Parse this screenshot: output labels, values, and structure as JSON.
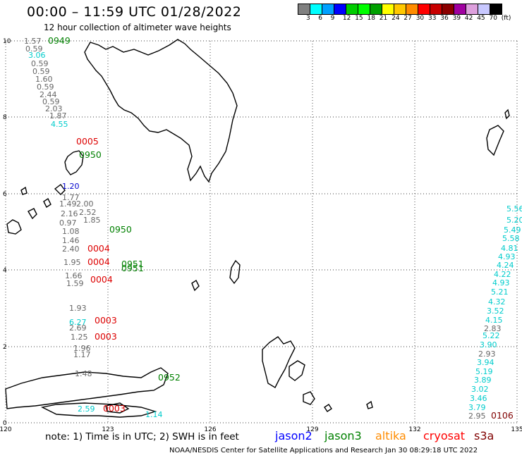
{
  "header": {
    "title": "00:00 – 11:59 UTC 01/28/2022",
    "subtitle": "12 hour collection of altimeter wave heights"
  },
  "legend": {
    "colors": [
      "#808080",
      "#00ffff",
      "#00a0ff",
      "#0000ff",
      "#00cd00",
      "#00ff00",
      "#00a000",
      "#ffff00",
      "#ffc800",
      "#ff8c00",
      "#ff0000",
      "#c80000",
      "#8b0000",
      "#a000a0",
      "#dda0dd",
      "#c8c8ff",
      "#000000"
    ],
    "labels": [
      "3",
      "6",
      "9",
      "12",
      "15",
      "18",
      "21",
      "24",
      "27",
      "30",
      "33",
      "36",
      "39",
      "42",
      "45",
      "70",
      "(ft)"
    ]
  },
  "map": {
    "lat_labels": [
      "10",
      "8",
      "6",
      "4",
      "2",
      "0"
    ],
    "lon_labels": [
      "120",
      "123",
      "126",
      "129",
      "132",
      "135"
    ],
    "text_color": "#666666",
    "ground_tracks": [
      {
        "mission": "jason3",
        "time": "0949",
        "color": "#008000"
      },
      {
        "mission": "cryosat",
        "time": "0005",
        "color": "#dd0000"
      },
      {
        "mission": "jason3",
        "time": "0950",
        "color": "#008000"
      },
      {
        "mission": "cryosat",
        "time": "0004",
        "color": "#dd0000"
      },
      {
        "mission": "jason3",
        "time": "0951",
        "color": "#008000"
      },
      {
        "mission": "cryosat",
        "time": "0003",
        "color": "#dd0000"
      },
      {
        "mission": "jason3",
        "time": "0952",
        "color": "#008000"
      },
      {
        "mission": "s3a",
        "time": "0106",
        "color": "#800000"
      }
    ],
    "wave_heights_ft": [
      {
        "v": "1.57",
        "c": "#666666"
      },
      {
        "v": "0.59",
        "c": "#666666"
      },
      {
        "v": "3.06",
        "c": "#00cccc"
      },
      {
        "v": "0.59",
        "c": "#666666"
      },
      {
        "v": "0.59",
        "c": "#666666"
      },
      {
        "v": "1.60",
        "c": "#666666"
      },
      {
        "v": "0.59",
        "c": "#666666"
      },
      {
        "v": "2.44",
        "c": "#666666"
      },
      {
        "v": "0.59",
        "c": "#666666"
      },
      {
        "v": "2.03",
        "c": "#666666"
      },
      {
        "v": "1.87",
        "c": "#666666"
      },
      {
        "v": "4.55",
        "c": "#00cccc"
      },
      {
        "v": "1.20",
        "c": "#0000cc"
      },
      {
        "v": "1.77",
        "c": "#666666"
      },
      {
        "v": "1.49",
        "c": "#666666"
      },
      {
        "v": "2.00",
        "c": "#666666"
      },
      {
        "v": "2.16",
        "c": "#666666"
      },
      {
        "v": "2.52",
        "c": "#666666"
      },
      {
        "v": "0.97",
        "c": "#666666"
      },
      {
        "v": "1.85",
        "c": "#666666"
      },
      {
        "v": "1.08",
        "c": "#666666"
      },
      {
        "v": "1.46",
        "c": "#666666"
      },
      {
        "v": "2.40",
        "c": "#666666"
      },
      {
        "v": "1.95",
        "c": "#666666"
      },
      {
        "v": "1.66",
        "c": "#666666"
      },
      {
        "v": "1.59",
        "c": "#666666"
      },
      {
        "v": "1.93",
        "c": "#666666"
      },
      {
        "v": "6.27",
        "c": "#00cccc"
      },
      {
        "v": "2.69",
        "c": "#666666"
      },
      {
        "v": "1.25",
        "c": "#666666"
      },
      {
        "v": "1.96",
        "c": "#666666"
      },
      {
        "v": "1.17",
        "c": "#666666"
      },
      {
        "v": "1.48",
        "c": "#666666"
      },
      {
        "v": "2.59",
        "c": "#00cccc"
      },
      {
        "v": "1.14",
        "c": "#00cccc"
      },
      {
        "v": "5.56",
        "c": "#00cccc"
      },
      {
        "v": "5.20",
        "c": "#00cccc"
      },
      {
        "v": "5.49",
        "c": "#00cccc"
      },
      {
        "v": "5.58",
        "c": "#00cccc"
      },
      {
        "v": "4.81",
        "c": "#00cccc"
      },
      {
        "v": "4.93",
        "c": "#00cccc"
      },
      {
        "v": "4.24",
        "c": "#00cccc"
      },
      {
        "v": "4.22",
        "c": "#00cccc"
      },
      {
        "v": "4.93",
        "c": "#00cccc"
      },
      {
        "v": "5.21",
        "c": "#00cccc"
      },
      {
        "v": "4.32",
        "c": "#00cccc"
      },
      {
        "v": "3.52",
        "c": "#00cccc"
      },
      {
        "v": "4.15",
        "c": "#00cccc"
      },
      {
        "v": "2.83",
        "c": "#666666"
      },
      {
        "v": "5.22",
        "c": "#00cccc"
      },
      {
        "v": "3.90",
        "c": "#00cccc"
      },
      {
        "v": "2.93",
        "c": "#666666"
      },
      {
        "v": "3.94",
        "c": "#00cccc"
      },
      {
        "v": "5.19",
        "c": "#00cccc"
      },
      {
        "v": "3.89",
        "c": "#00cccc"
      },
      {
        "v": "3.02",
        "c": "#00cccc"
      },
      {
        "v": "3.46",
        "c": "#00cccc"
      },
      {
        "v": "3.79",
        "c": "#00cccc"
      },
      {
        "v": "2.95",
        "c": "#666666"
      }
    ]
  },
  "footer": {
    "note": "note: 1) Time is in UTC; 2) SWH is in feet",
    "missions": [
      {
        "name": "jason2",
        "color": "#0000ff"
      },
      {
        "name": "jason3",
        "color": "#008000"
      },
      {
        "name": "altika",
        "color": "#ff8c00"
      },
      {
        "name": "cryosat",
        "color": "#ff0000"
      },
      {
        "name": "s3a",
        "color": "#800000"
      }
    ],
    "credit": "NOAA/NESDIS Center for Satellite Applications and Research    Jan 30 08:29:18 UTC 2022"
  }
}
